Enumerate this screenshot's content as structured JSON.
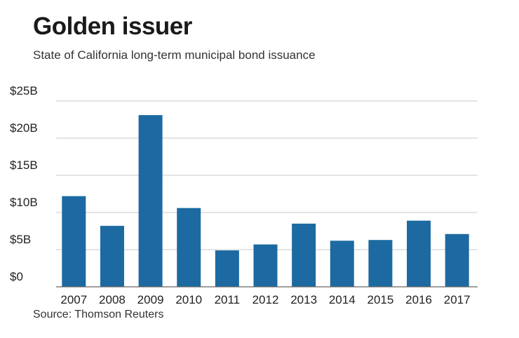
{
  "title": "Golden issuer",
  "subtitle": "State of California long-term municipal bond issuance",
  "source": "Source: Thomson Reuters",
  "colors": {
    "bar": "#1c6aa1",
    "grid": "#c8c8c8",
    "axis": "#666666"
  },
  "chart_data": {
    "type": "bar",
    "title": "Golden issuer",
    "subtitle": "State of California long-term municipal bond issuance",
    "xlabel": "",
    "ylabel": "",
    "unit": "billions USD",
    "categories": [
      "2007",
      "2008",
      "2009",
      "2010",
      "2011",
      "2012",
      "2013",
      "2014",
      "2015",
      "2016",
      "2017"
    ],
    "values": [
      12.2,
      8.2,
      23.1,
      10.6,
      4.9,
      5.7,
      8.5,
      6.2,
      6.3,
      8.9,
      7.1
    ],
    "ylim": [
      0,
      25
    ],
    "yticks": [
      0,
      5,
      10,
      15,
      20,
      25
    ],
    "ytick_labels": [
      "$0",
      "$5B",
      "$10B",
      "$15B",
      "$20B",
      "$25B"
    ],
    "grid": true,
    "legend": "none"
  }
}
